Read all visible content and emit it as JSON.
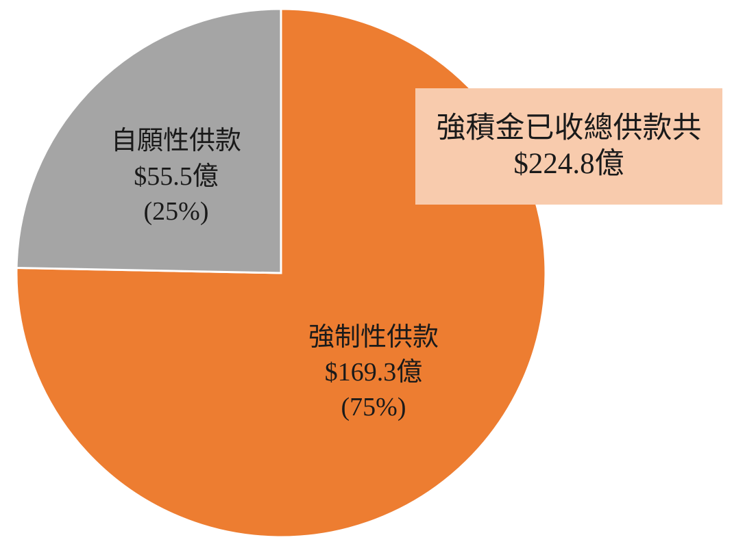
{
  "chart_data": {
    "type": "pie",
    "slices": [
      {
        "label": "強制性供款",
        "amount_label": "$169.3億",
        "pct_label": "(75%)",
        "value": 169.3,
        "percent": 75,
        "color": "#ed7d31"
      },
      {
        "label": "自願性供款",
        "amount_label": "$55.5億",
        "pct_label": "(25%)",
        "value": 55.5,
        "percent": 25,
        "color": "#a5a5a5"
      }
    ],
    "start_angle_deg": 0,
    "direction": "clockwise"
  },
  "callout": {
    "line1": "強積金已收總供款共",
    "line2": "$224.8億",
    "fill": "#f8cbad"
  }
}
